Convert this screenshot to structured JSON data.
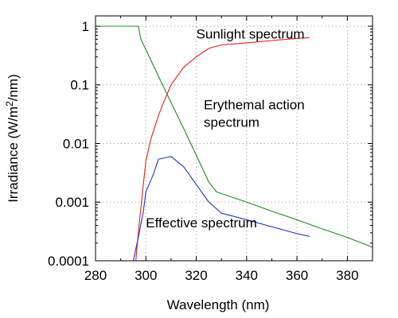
{
  "chart_data": {
    "type": "line",
    "title": "",
    "xlabel": "Wavelength (nm)",
    "ylabel_prefix": "Irradiance (W/m",
    "ylabel_superscript": "2",
    "ylabel_suffix": "/nm)",
    "xlim": [
      280,
      390
    ],
    "ylim": [
      0.0001,
      1.5
    ],
    "y_scale": "log",
    "grid": true,
    "legend": "none",
    "x_ticks": [
      280,
      300,
      320,
      340,
      360,
      380
    ],
    "x_tick_labels": [
      "280",
      "300",
      "320",
      "340",
      "360",
      "380"
    ],
    "y_ticks": [
      0.0001,
      0.001,
      0.01,
      0.1,
      1
    ],
    "y_tick_labels": [
      "0.0001",
      "0.001",
      "0.01",
      "0.1",
      "1"
    ],
    "series": [
      {
        "name": "Sunlight spectrum",
        "color": "#e8201a",
        "points": [
          [
            296,
            0.0001
          ],
          [
            297,
            0.0003
          ],
          [
            298,
            0.0008
          ],
          [
            299,
            0.002
          ],
          [
            300,
            0.005
          ],
          [
            302,
            0.012
          ],
          [
            305,
            0.03
          ],
          [
            307,
            0.05
          ],
          [
            310,
            0.1
          ],
          [
            315,
            0.2
          ],
          [
            320,
            0.3
          ],
          [
            325,
            0.42
          ],
          [
            330,
            0.48
          ],
          [
            340,
            0.52
          ],
          [
            350,
            0.57
          ],
          [
            360,
            0.62
          ],
          [
            365,
            0.64
          ]
        ]
      },
      {
        "name": "Erythemal action spectrum",
        "color": "#1e8c1e",
        "points": [
          [
            280,
            1
          ],
          [
            290,
            1
          ],
          [
            297,
            1
          ],
          [
            298,
            0.6
          ],
          [
            300,
            0.4
          ],
          [
            305,
            0.14
          ],
          [
            310,
            0.05
          ],
          [
            315,
            0.018
          ],
          [
            320,
            0.0063
          ],
          [
            325,
            0.0022
          ],
          [
            328,
            0.0015
          ],
          [
            330,
            0.0014
          ],
          [
            340,
            0.001
          ],
          [
            350,
            0.0007
          ],
          [
            360,
            0.0005
          ],
          [
            370,
            0.00035
          ],
          [
            380,
            0.00025
          ],
          [
            390,
            0.00017
          ]
        ]
      },
      {
        "name": "Effective spectrum",
        "color": "#2233cc",
        "points": [
          [
            295,
            0.0001
          ],
          [
            297,
            0.00025
          ],
          [
            299,
            0.0007
          ],
          [
            300,
            0.0015
          ],
          [
            303,
            0.003
          ],
          [
            305,
            0.0054
          ],
          [
            310,
            0.006
          ],
          [
            315,
            0.004
          ],
          [
            320,
            0.002
          ],
          [
            325,
            0.001
          ],
          [
            330,
            0.00065
          ],
          [
            340,
            0.0005
          ],
          [
            350,
            0.00038
          ],
          [
            360,
            0.00029
          ],
          [
            365,
            0.00026
          ]
        ]
      }
    ],
    "annotations": [
      {
        "lines": [
          "Sunlight spectrum"
        ],
        "x": 320,
        "y": 0.62,
        "series": "Sunlight spectrum"
      },
      {
        "lines": [
          "Erythemal action",
          "spectrum"
        ],
        "x": 323,
        "y": 0.038,
        "series": "Erythemal action spectrum"
      },
      {
        "lines": [
          "Effective spectrum"
        ],
        "x": 300,
        "y": 0.00037,
        "series": "Effective spectrum"
      }
    ]
  }
}
